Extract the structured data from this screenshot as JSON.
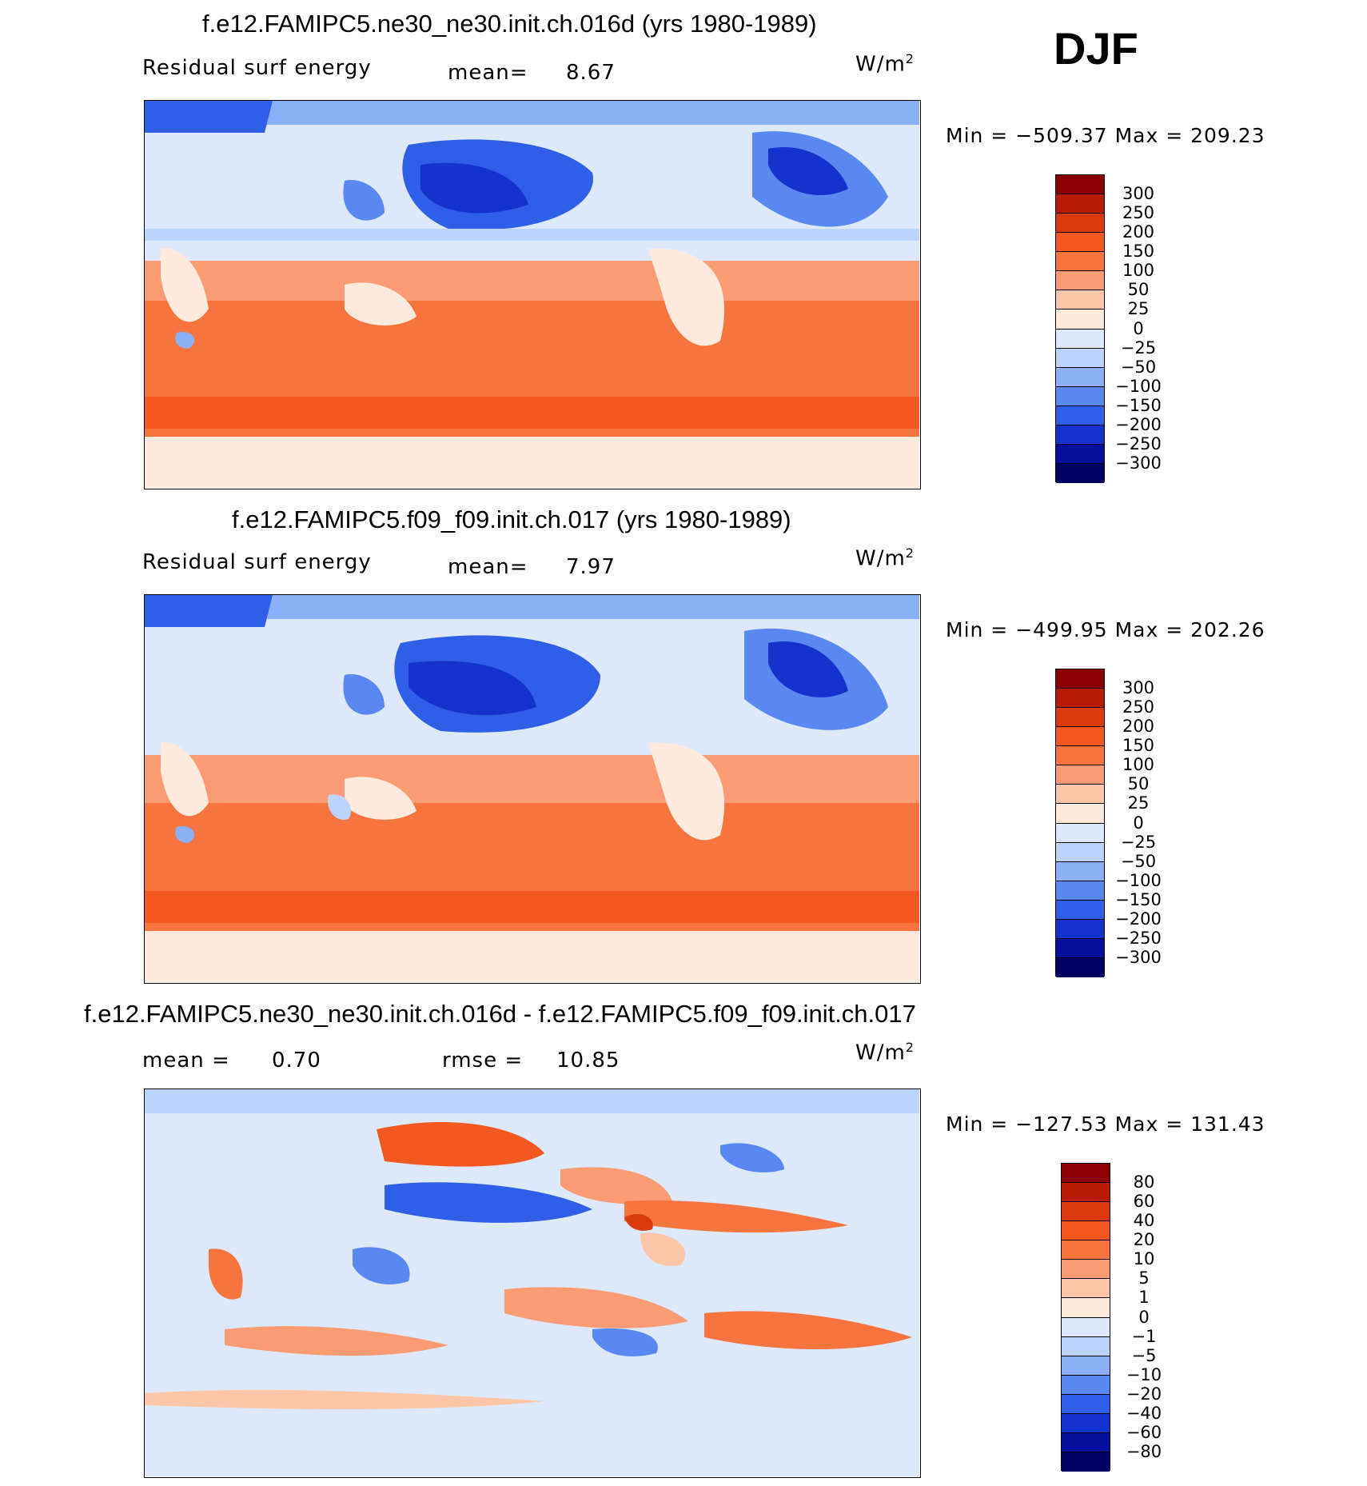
{
  "season": "DJF",
  "units_base": "W/m",
  "units_sup": "2",
  "panels": [
    {
      "title": "f.e12.FAMIPC5.ne30_ne30.init.ch.016d (yrs 1980-1989)",
      "left_label": "Residual  surf  energy",
      "stat1_label": "mean=",
      "stat1_value": "8.67",
      "stat2_label": "",
      "stat2_value": "",
      "minmax": "Min  =  −509.37  Max  =  209.23",
      "colorbar_ticks": [
        "300",
        "250",
        "200",
        "150",
        "100",
        "50",
        "25",
        "0",
        "−25",
        "−50",
        "−100",
        "−150",
        "−200",
        "−250",
        "−300"
      ]
    },
    {
      "title": "f.e12.FAMIPC5.f09_f09.init.ch.017 (yrs 1980-1989)",
      "left_label": "Residual  surf  energy",
      "stat1_label": "mean=",
      "stat1_value": "7.97",
      "stat2_label": "",
      "stat2_value": "",
      "minmax": "Min  =  −499.95  Max  =  202.26",
      "colorbar_ticks": [
        "300",
        "250",
        "200",
        "150",
        "100",
        "50",
        "25",
        "0",
        "−25",
        "−50",
        "−100",
        "−150",
        "−200",
        "−250",
        "−300"
      ]
    },
    {
      "title": "f.e12.FAMIPC5.ne30_ne30.init.ch.016d - f.e12.FAMIPC5.f09_f09.init.ch.017",
      "left_label": "",
      "stat1_label": "mean  =",
      "stat1_value": "0.70",
      "stat2_label": "rmse  =",
      "stat2_value": "10.85",
      "minmax": "Min  =  −127.53  Max  =  131.43",
      "colorbar_ticks": [
        "80",
        "60",
        "40",
        "20",
        "10",
        "5",
        "1",
        "0",
        "−1",
        "−5",
        "−10",
        "−20",
        "−40",
        "−60",
        "−80"
      ]
    }
  ],
  "colorbar_colors": [
    "#8b0000",
    "#b71d05",
    "#d93a10",
    "#f2581f",
    "#f7743e",
    "#fb9b74",
    "#fdc6a9",
    "#feeadd",
    "#dde9fb",
    "#bcd3fb",
    "#8cb0f7",
    "#5988f1",
    "#2e5fe6",
    "#1433cd",
    "#06109c",
    "#000063"
  ],
  "chart_data": [
    {
      "type": "heatmap",
      "title": "f.e12.FAMIPC5.ne30_ne30.init.ch.016d (yrs 1980-1989)",
      "variable": "Residual surf energy",
      "units": "W/m2",
      "season": "DJF",
      "mean": 8.67,
      "min": -509.37,
      "max": 209.23,
      "contour_levels": [
        -300,
        -250,
        -200,
        -150,
        -100,
        -50,
        -25,
        0,
        25,
        50,
        100,
        150,
        200,
        250,
        300
      ]
    },
    {
      "type": "heatmap",
      "title": "f.e12.FAMIPC5.f09_f09.init.ch.017 (yrs 1980-1989)",
      "variable": "Residual surf energy",
      "units": "W/m2",
      "season": "DJF",
      "mean": 7.97,
      "min": -499.95,
      "max": 202.26,
      "contour_levels": [
        -300,
        -250,
        -200,
        -150,
        -100,
        -50,
        -25,
        0,
        25,
        50,
        100,
        150,
        200,
        250,
        300
      ]
    },
    {
      "type": "heatmap",
      "title": "f.e12.FAMIPC5.ne30_ne30.init.ch.016d - f.e12.FAMIPC5.f09_f09.init.ch.017",
      "units": "W/m2",
      "mean": 0.7,
      "rmse": 10.85,
      "min": -127.53,
      "max": 131.43,
      "contour_levels": [
        -80,
        -60,
        -40,
        -20,
        -10,
        -5,
        -1,
        0,
        1,
        5,
        10,
        20,
        40,
        60,
        80
      ]
    }
  ]
}
